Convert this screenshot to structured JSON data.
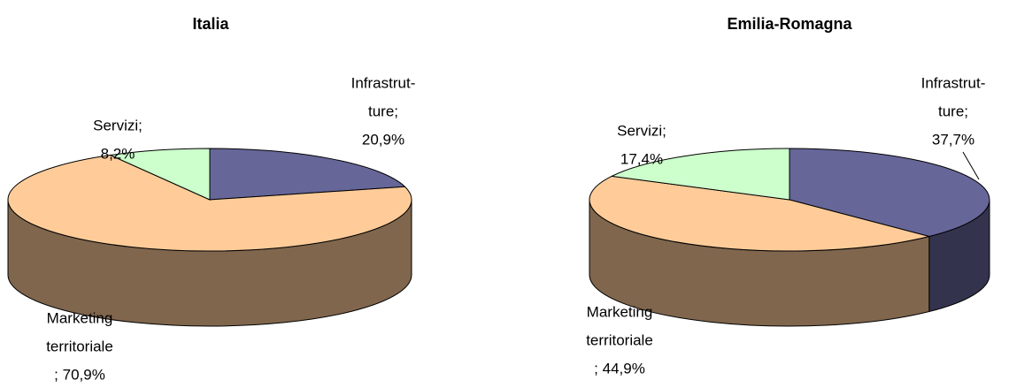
{
  "chart_data": [
    {
      "type": "pie3d",
      "title": "Italia",
      "values": [
        20.9,
        70.9,
        8.2
      ],
      "value_labels": [
        [
          "Infrastrut-",
          "ture;",
          "20,9%"
        ],
        [
          "Marketing",
          "territoriale",
          "; 70,9%"
        ],
        [
          "Servizi;",
          "8,2%"
        ]
      ],
      "colors": [
        "#666699",
        "#ffcc99",
        "#ccffcc"
      ]
    },
    {
      "type": "pie3d",
      "title": "Emilia-Romagna",
      "values": [
        37.7,
        44.9,
        17.4
      ],
      "value_labels": [
        [
          "Infrastrut-",
          "ture;",
          "37,7%"
        ],
        [
          "Marketing",
          "territoriale",
          "; 44,9%"
        ],
        [
          "Servizi;",
          "17,4%"
        ]
      ],
      "colors": [
        "#666699",
        "#ffcc99",
        "#ccffcc"
      ]
    }
  ]
}
